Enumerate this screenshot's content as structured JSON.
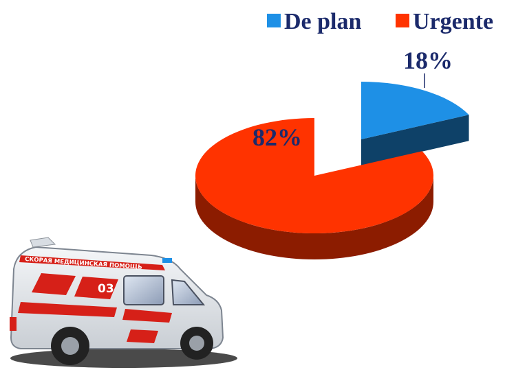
{
  "chart_data": {
    "type": "pie3d",
    "categories": [
      "De plan",
      "Urgente"
    ],
    "values": [
      18,
      82
    ],
    "value_labels": [
      "18%",
      "82%"
    ],
    "colors": [
      "#1e90e6",
      "#ff3300"
    ],
    "legend": "top"
  },
  "illustration": {
    "banner": "СКОРАЯ МЕДИЦИНСКАЯ ПОМОЩЬ",
    "number": "03"
  }
}
